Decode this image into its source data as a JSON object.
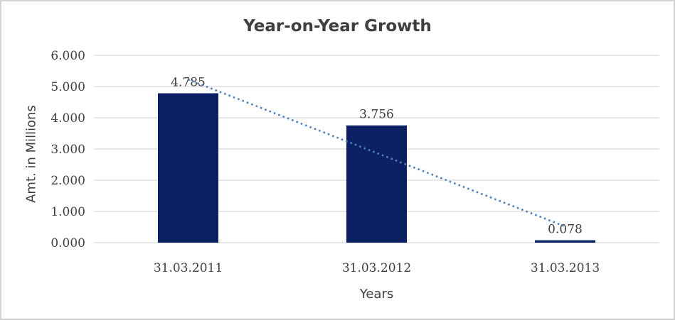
{
  "frame": {
    "background": "#ffffff",
    "border_color": "#d3d3d3"
  },
  "chart_data": {
    "type": "bar",
    "title": "Year-on-Year Growth",
    "xlabel": "Years",
    "ylabel": "Amt. in Millions",
    "categories": [
      "31.03.2011",
      "31.03.2012",
      "31.03.2013"
    ],
    "values": [
      4.785,
      3.756,
      0.078
    ],
    "data_labels": [
      "4.785",
      "3.756",
      "0.078"
    ],
    "yticks": [
      "6.000",
      "5.000",
      "4.000",
      "3.000",
      "2.000",
      "1.000",
      "0.000"
    ],
    "ylim": [
      0,
      6
    ],
    "grid": true,
    "legend": "none",
    "bar_color": "#0b2161",
    "gridline_color": "#d9d9d9",
    "text_color": "#3f3f3f",
    "trendline": {
      "type": "linear",
      "style": "dotted",
      "color": "#4f81bd"
    }
  }
}
